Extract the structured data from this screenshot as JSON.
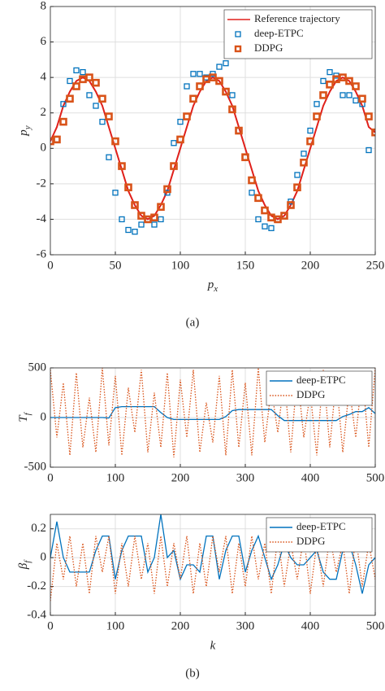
{
  "chart_data": [
    {
      "type": "line",
      "xlabel": "p_x",
      "ylabel": "p_y",
      "x": [
        0,
        5,
        10,
        15,
        20,
        25,
        30,
        35,
        40,
        45,
        50,
        55,
        60,
        65,
        70,
        75,
        80,
        85,
        90,
        95,
        100,
        105,
        110,
        115,
        120,
        125,
        130,
        135,
        140,
        145,
        150,
        155,
        160,
        165,
        170,
        175,
        180,
        185,
        190,
        195,
        200,
        205,
        210,
        215,
        220,
        225,
        230,
        235,
        240,
        245,
        250
      ],
      "xlim": [
        0,
        250
      ],
      "xticks": [
        0,
        50,
        100,
        150,
        200,
        250
      ],
      "ylim": [
        -6,
        8
      ],
      "yticks": [
        -6,
        -4,
        -2,
        0,
        2,
        4,
        6,
        8
      ],
      "grid": true,
      "legend": "top-right",
      "series": [
        {
          "name": "Reference trajectory",
          "color": "#e0201b",
          "mark": "line",
          "values": [
            0.4,
            1.2,
            2.4,
            3.2,
            3.8,
            4,
            3.8,
            3.2,
            2.4,
            1.2,
            0,
            -1.2,
            -2.4,
            -3.2,
            -3.8,
            -4,
            -3.8,
            -3.2,
            -2.4,
            -1.2,
            0,
            1.2,
            2.4,
            3.2,
            3.8,
            4,
            3.8,
            3.2,
            2.4,
            1.2,
            0,
            -1.2,
            -2.4,
            -3.2,
            -3.8,
            -4,
            -3.8,
            -3.2,
            -2.4,
            -1.2,
            0,
            1.2,
            2.4,
            3.2,
            3.8,
            4,
            3.8,
            3.2,
            2.4,
            1.2,
            0.9
          ]
        },
        {
          "name": "deep-ETPC",
          "color": "#0072bd",
          "mark": "square",
          "values": [
            0.4,
            0.5,
            2.5,
            3.8,
            4.4,
            4.3,
            3.0,
            2.4,
            1.5,
            -0.5,
            -2.5,
            -4.0,
            -4.6,
            -4.7,
            -4.3,
            -4.0,
            -4.3,
            -4.0,
            -2.5,
            0.3,
            1.5,
            3.5,
            4.2,
            4.2,
            4.0,
            4.2,
            4.6,
            4.8,
            3.0,
            1.0,
            -0.5,
            -2.5,
            -4.0,
            -4.4,
            -4.5,
            -4.0,
            -3.8,
            -3.0,
            -1.5,
            -0.3,
            1.0,
            2.5,
            3.8,
            4.3,
            4.1,
            3.0,
            3.0,
            2.7,
            2.5,
            -0.1,
            null
          ]
        },
        {
          "name": "DDPG",
          "color": "#d95319",
          "mark": "square",
          "values": [
            0.4,
            0.5,
            1.5,
            2.8,
            3.5,
            3.9,
            4.0,
            3.7,
            2.8,
            1.8,
            0.4,
            -1.0,
            -2.2,
            -3.2,
            -3.8,
            -4.0,
            -3.9,
            -3.3,
            -2.3,
            -1.0,
            0.5,
            1.8,
            2.8,
            3.5,
            3.9,
            4.0,
            3.8,
            3.2,
            2.2,
            1.0,
            -0.5,
            -1.8,
            -2.8,
            -3.5,
            -3.9,
            -4.0,
            -3.8,
            -3.2,
            -2.2,
            -0.8,
            0.4,
            1.8,
            3.0,
            3.6,
            3.9,
            4.0,
            3.8,
            3.5,
            2.8,
            1.8,
            0.9
          ]
        }
      ]
    },
    {
      "type": "line",
      "ylabel": "T_f",
      "x": [
        0,
        10,
        20,
        30,
        40,
        50,
        60,
        70,
        80,
        90,
        100,
        110,
        120,
        130,
        140,
        150,
        160,
        170,
        180,
        190,
        200,
        210,
        220,
        230,
        240,
        250,
        260,
        270,
        280,
        290,
        300,
        310,
        320,
        330,
        340,
        350,
        360,
        370,
        380,
        390,
        400,
        410,
        420,
        430,
        440,
        450,
        460,
        470,
        480,
        490,
        500
      ],
      "xlim": [
        0,
        500
      ],
      "xticks": [
        0,
        100,
        200,
        300,
        400,
        500
      ],
      "ylim": [
        -500,
        500
      ],
      "yticks": [
        -500,
        0,
        500
      ],
      "grid": true,
      "legend": "top-right",
      "series": [
        {
          "name": "deep-ETPC",
          "color": "#0072bd",
          "mark": "line",
          "values": [
            0,
            0,
            0,
            0,
            0,
            0,
            0,
            0,
            0,
            -5,
            100,
            110,
            110,
            110,
            110,
            110,
            110,
            50,
            0,
            -20,
            -20,
            -20,
            -20,
            -20,
            -20,
            -20,
            -20,
            10,
            70,
            80,
            80,
            80,
            80,
            80,
            80,
            20,
            -30,
            -30,
            -30,
            -30,
            -30,
            -30,
            -30,
            -30,
            -30,
            10,
            30,
            60,
            60,
            100,
            40
          ]
        },
        {
          "name": "DDPG",
          "color": "#d95319",
          "mark": "dotted",
          "values": [
            480,
            -200,
            350,
            -380,
            450,
            -300,
            200,
            -350,
            500,
            -280,
            420,
            -380,
            300,
            -150,
            480,
            -350,
            250,
            -300,
            450,
            -400,
            380,
            -200,
            480,
            -350,
            150,
            -250,
            420,
            -380,
            480,
            -300,
            350,
            -380,
            500,
            -250,
            300,
            -150,
            400,
            -350,
            450,
            -200,
            250,
            -380,
            480,
            -300,
            400,
            -350,
            300,
            -200,
            450,
            -300,
            500
          ]
        }
      ]
    },
    {
      "type": "line",
      "xlabel": "k",
      "ylabel": "β_f",
      "x": [
        0,
        10,
        20,
        30,
        40,
        50,
        60,
        70,
        80,
        90,
        100,
        110,
        120,
        130,
        140,
        150,
        160,
        170,
        180,
        190,
        200,
        210,
        220,
        230,
        240,
        250,
        260,
        270,
        280,
        290,
        300,
        310,
        320,
        330,
        340,
        350,
        360,
        370,
        380,
        390,
        400,
        410,
        420,
        430,
        440,
        450,
        460,
        470,
        480,
        490,
        500
      ],
      "xlim": [
        0,
        500
      ],
      "xticks": [
        0,
        100,
        200,
        300,
        400,
        500
      ],
      "ylim": [
        -0.4,
        0.3
      ],
      "yticks": [
        -0.4,
        -0.2,
        0,
        0.2
      ],
      "grid": true,
      "legend": "top-right",
      "series": [
        {
          "name": "deep-ETPC",
          "color": "#0072bd",
          "mark": "line",
          "values": [
            0,
            0.25,
            0,
            -0.1,
            -0.1,
            -0.1,
            -0.1,
            0.05,
            0.15,
            0.15,
            -0.15,
            0.05,
            0.15,
            0.15,
            0.15,
            -0.1,
            0,
            0.3,
            0,
            0.05,
            -0.15,
            -0.05,
            -0.05,
            -0.1,
            0.15,
            0.15,
            -0.15,
            0.05,
            0.15,
            0.15,
            -0.1,
            0.05,
            0.15,
            0,
            -0.15,
            -0.05,
            0.1,
            0,
            -0.05,
            -0.05,
            0,
            0.05,
            -0.1,
            -0.15,
            -0.15,
            0.05,
            0.1,
            -0.05,
            -0.25,
            -0.05,
            0
          ]
        },
        {
          "name": "DDPG",
          "color": "#d95319",
          "mark": "dotted",
          "values": [
            -0.3,
            0.1,
            -0.15,
            0.15,
            -0.2,
            0.1,
            -0.25,
            0.15,
            -0.1,
            0.15,
            -0.25,
            0.1,
            -0.2,
            0.15,
            -0.15,
            0.1,
            -0.25,
            0.15,
            -0.2,
            0.1,
            -0.15,
            0.15,
            -0.25,
            0.1,
            -0.2,
            0.15,
            -0.1,
            0.15,
            -0.25,
            0.1,
            -0.2,
            0.15,
            -0.15,
            0.1,
            -0.25,
            0.15,
            -0.2,
            0.1,
            -0.15,
            0.15,
            -0.25,
            0.1,
            -0.2,
            0.15,
            -0.1,
            0.1,
            -0.25,
            0.15,
            -0.2,
            0.1,
            -0.15
          ]
        }
      ]
    }
  ],
  "captions": [
    "(a)",
    "(b)"
  ]
}
